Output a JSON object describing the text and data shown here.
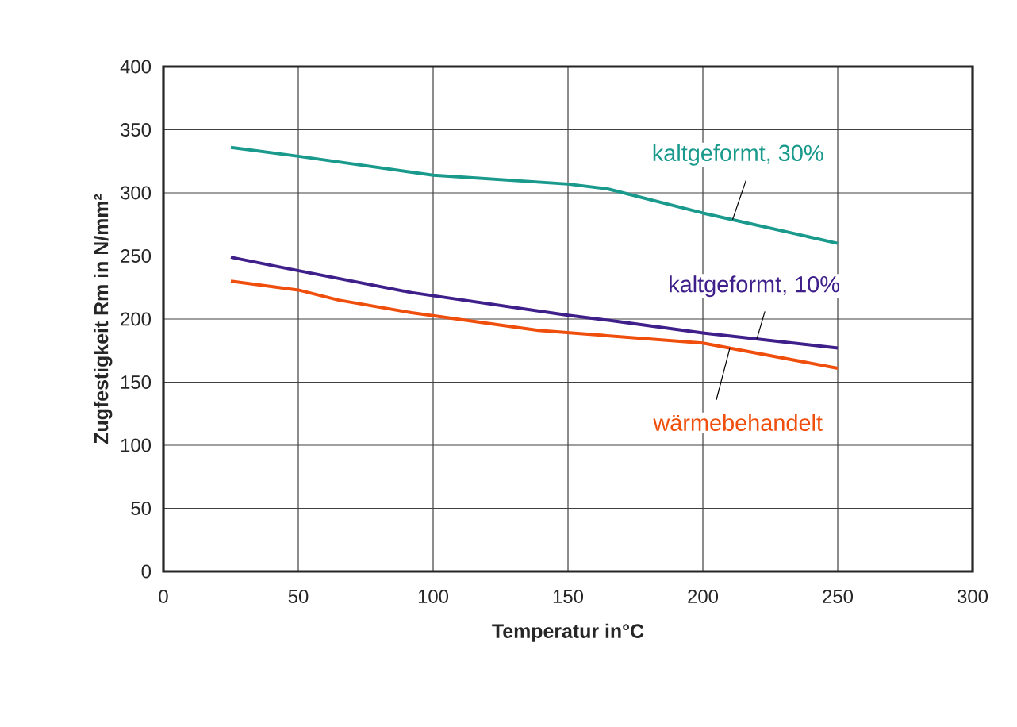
{
  "chart_data": {
    "type": "line",
    "xlabel": "Temperatur in°C",
    "ylabel": "Zugfestigkeit Rm in N/mm²",
    "xlim": [
      0,
      300
    ],
    "xticks": [
      0,
      50,
      100,
      150,
      200,
      250,
      300
    ],
    "ylim": [
      0,
      400
    ],
    "yticks": [
      0,
      50,
      100,
      150,
      200,
      250,
      300,
      350,
      400
    ],
    "grid": true,
    "series": [
      {
        "name": "kaltgeformt, 30%",
        "color": "#1a9a8c",
        "x": [
          25,
          50,
          100,
          107,
          150,
          165,
          200,
          250
        ],
        "values": [
          336,
          329,
          314,
          313,
          307,
          303,
          284,
          260
        ]
      },
      {
        "name": "kaltgeformt, 10%",
        "color": "#3f1f8a",
        "x": [
          25,
          46,
          92,
          150,
          165,
          200,
          250
        ],
        "values": [
          249,
          240,
          221,
          203,
          199,
          189,
          177
        ]
      },
      {
        "name": "wärmebehandelt",
        "color": "#f04e0c",
        "x": [
          25,
          50,
          65,
          92,
          139,
          200,
          250
        ],
        "values": [
          230,
          223,
          215,
          205,
          191,
          181,
          161
        ]
      }
    ]
  }
}
